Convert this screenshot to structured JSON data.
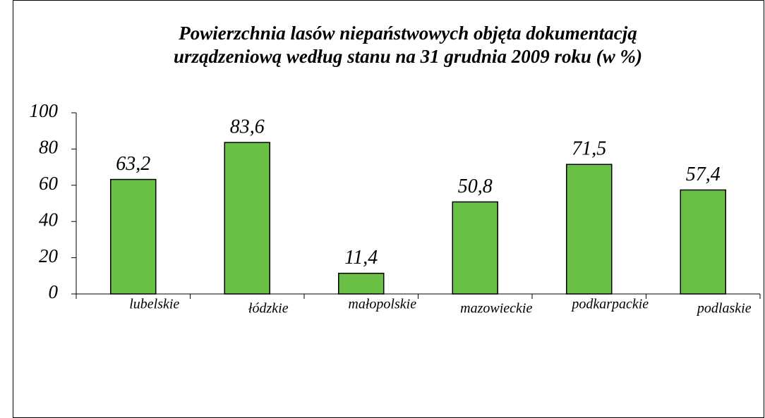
{
  "chart_data": {
    "type": "bar",
    "title": [
      "Powierzchnia lasów niepaństwowych objęta dokumentacją",
      "urządzeniową według stanu na 31 grudnia 2009 roku (w %)"
    ],
    "categories": [
      "lubelskie",
      "łódzkie",
      "małopolskie",
      "mazowieckie",
      "podkarpackie",
      "podlaskie"
    ],
    "values": [
      63.2,
      83.6,
      11.4,
      50.8,
      71.5,
      57.4
    ],
    "value_labels": [
      "63,2",
      "83,6",
      "11,4",
      "50,8",
      "71,5",
      "57,4"
    ],
    "color": "#6abf45",
    "ylim": [
      0,
      100
    ],
    "yticks": [
      0,
      20,
      40,
      60,
      80,
      100
    ],
    "grid": false
  }
}
